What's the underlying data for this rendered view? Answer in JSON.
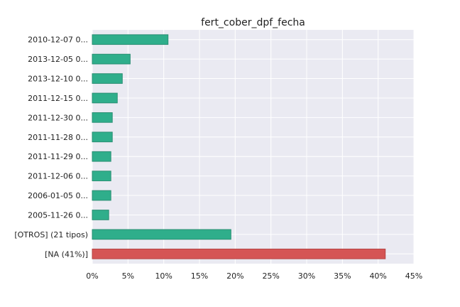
{
  "chart_data": {
    "type": "bar",
    "orientation": "horizontal",
    "title": "fert_cober_dpf_fecha",
    "xlabel": "",
    "ylabel": "",
    "xlim": [
      0,
      45
    ],
    "x_ticks": [
      "0%",
      "5%",
      "10%",
      "15%",
      "20%",
      "25%",
      "30%",
      "35%",
      "40%",
      "45%"
    ],
    "grid": true,
    "categories": [
      "2010-12-07 0...",
      "2013-12-05 0...",
      "2013-12-10 0...",
      "2011-12-15 0...",
      "2011-12-30 0...",
      "2011-11-28 0...",
      "2011-11-29 0...",
      "2011-12-06 0...",
      "2006-01-05 0...",
      "2005-11-26 0...",
      "[OTROS] (21 tipos)",
      "[NA (41%)]"
    ],
    "values": [
      10.6,
      5.3,
      4.2,
      3.5,
      2.8,
      2.8,
      2.6,
      2.6,
      2.6,
      2.3,
      19.4,
      41.0
    ],
    "colors": [
      "#2fae8b",
      "#2fae8b",
      "#2fae8b",
      "#2fae8b",
      "#2fae8b",
      "#2fae8b",
      "#2fae8b",
      "#2fae8b",
      "#2fae8b",
      "#2fae8b",
      "#2fae8b",
      "#d55555"
    ],
    "edge_colors": [
      "#2a8f73",
      "#2a8f73",
      "#2a8f73",
      "#2a8f73",
      "#2a8f73",
      "#2a8f73",
      "#2a8f73",
      "#2a8f73",
      "#2a8f73",
      "#2a8f73",
      "#2a8f73",
      "#b54545"
    ],
    "background": "#eaeaf2",
    "grid_color": "#ffffff"
  }
}
